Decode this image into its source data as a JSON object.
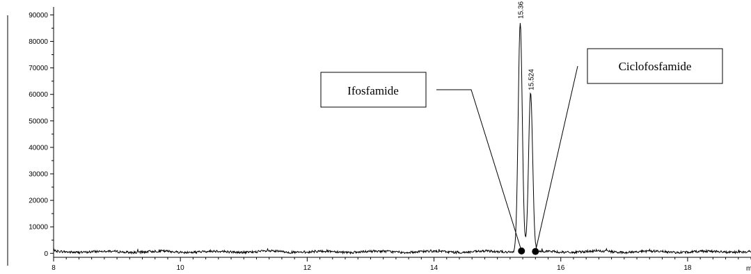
{
  "chart_data": {
    "type": "line",
    "title": "",
    "xlabel": "m",
    "ylabel": "",
    "xlim": [
      8,
      19
    ],
    "ylim": [
      -1500,
      93000
    ],
    "x_ticks": [
      8,
      10,
      12,
      14,
      16,
      18
    ],
    "y_ticks": [
      0,
      10000,
      20000,
      30000,
      40000,
      50000,
      60000,
      70000,
      80000,
      90000
    ],
    "grid": false,
    "baseline": 600,
    "peaks": [
      {
        "label": "15.36",
        "x": 15.36,
        "y": 87500,
        "sigma": 0.032
      },
      {
        "label": "15.524",
        "x": 15.524,
        "y": 60500,
        "sigma": 0.032
      }
    ],
    "annotations": [
      {
        "text": "Ifosfamide",
        "marker": {
          "x": 15.38,
          "y": 900
        }
      },
      {
        "text": "Ciclofosfamide",
        "marker": {
          "x": 15.6,
          "y": 700
        }
      }
    ],
    "colors": {
      "line": "#000000",
      "axis": "#000000",
      "marker": "#000000",
      "background": "#ffffff"
    }
  }
}
